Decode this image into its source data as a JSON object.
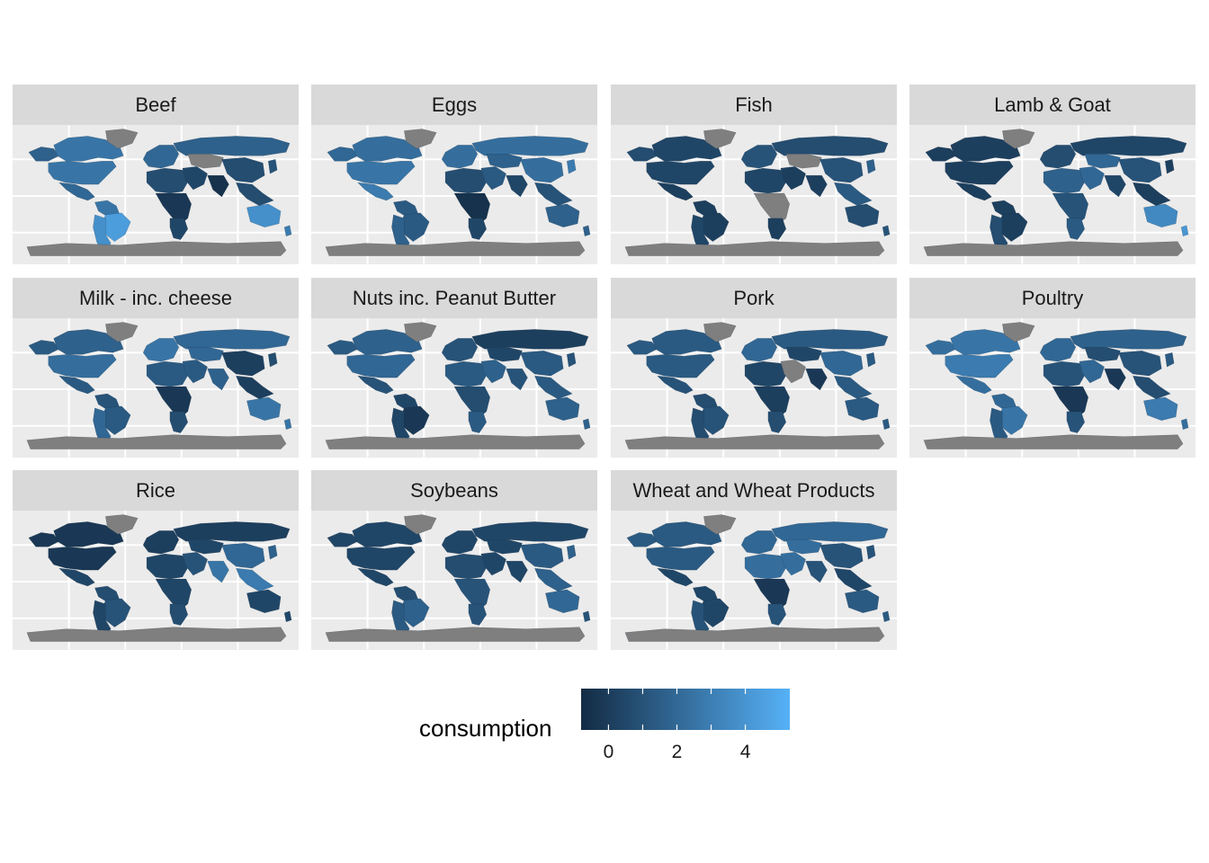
{
  "map_data": {
    "type": "choropleth-facets",
    "panels": [
      {
        "title": "Beef"
      },
      {
        "title": "Eggs"
      },
      {
        "title": "Fish"
      },
      {
        "title": "Lamb & Goat"
      },
      {
        "title": "Milk - inc. cheese"
      },
      {
        "title": "Nuts inc. Peanut Butter"
      },
      {
        "title": "Pork"
      },
      {
        "title": "Poultry"
      },
      {
        "title": "Rice"
      },
      {
        "title": "Soybeans"
      },
      {
        "title": "Wheat and Wheat Products"
      }
    ],
    "legend": {
      "title": "consumption",
      "ticks": [
        0,
        2,
        4
      ],
      "range": [
        -0.8,
        5.3
      ],
      "color_low": "#132b43",
      "color_high": "#56b1f7",
      "missing_color": "#7f7f7f"
    },
    "colors": {
      "panel_background": "#ebebeb",
      "strip_background": "#d9d9d9",
      "gridline": "#ffffff"
    }
  }
}
